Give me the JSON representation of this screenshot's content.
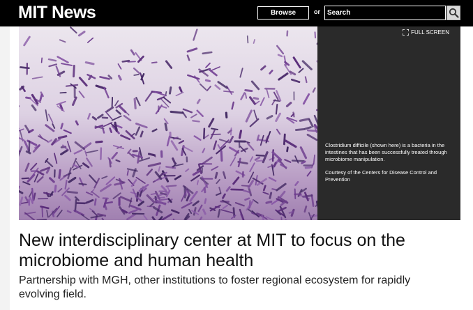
{
  "header": {
    "logo": "MIT News",
    "browse_label": "Browse",
    "or_label": "or",
    "search_placeholder": "Search"
  },
  "media": {
    "fullscreen_label": "FULL SCREEN",
    "caption": "Clostridium difficile (shown here) is a bacteria in the intestines that has been successfully treated through microbiome manipulation.",
    "credit": "Courtesy of the Centers for Disease Control and Prevention"
  },
  "article": {
    "headline": "New interdisciplinary center at MIT to focus on the microbiome and human health",
    "subheadline": "Partnership with MGH, other institutions to foster regional ecosystem for rapidly evolving field."
  }
}
